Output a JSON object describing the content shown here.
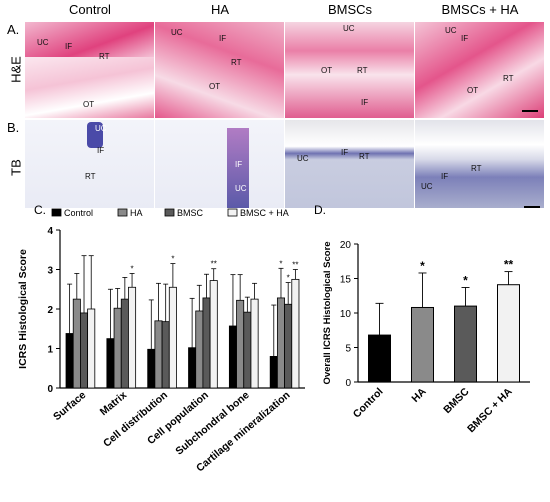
{
  "figure": {
    "column_headers": [
      "Control",
      "HA",
      "BMSCs",
      "BMSCs + HA"
    ],
    "row_labels": [
      "H&E",
      "TB"
    ],
    "panel_letters": {
      "a": "A.",
      "b": "B.",
      "c": "C.",
      "d": "D."
    },
    "he_tiles": [
      {
        "labels": [
          "UC",
          "IF",
          "RT",
          "OT"
        ]
      },
      {
        "labels": [
          "UC",
          "IF",
          "RT",
          "OT"
        ]
      },
      {
        "labels": [
          "UC",
          "OT",
          "RT",
          "IF"
        ]
      },
      {
        "labels": [
          "UC",
          "IF",
          "OT",
          "RT"
        ]
      }
    ],
    "tb_tiles": [
      {
        "labels": [
          "UC",
          "IF",
          "RT"
        ]
      },
      {
        "labels": [
          "IF",
          "UC"
        ]
      },
      {
        "labels": [
          "UC",
          "IF",
          "RT"
        ]
      },
      {
        "labels": [
          "RT",
          "IF",
          "UC"
        ]
      }
    ]
  },
  "chart_data": [
    {
      "type": "bar",
      "ylabel": "ICRS Histological Score",
      "ylim": [
        0,
        4
      ],
      "yticks": [
        0,
        1,
        2,
        3,
        4
      ],
      "legend_placement": "top",
      "categories": [
        "Surface",
        "Matrix",
        "Cell distribution",
        "Cell population",
        "Subchondral bone",
        "Cartilage mineralization"
      ],
      "series": [
        {
          "name": "Control",
          "color": "#000000",
          "values": [
            1.38,
            1.25,
            0.98,
            1.02,
            1.57,
            0.8
          ],
          "errors": [
            1.25,
            1.25,
            1.25,
            1.25,
            1.3,
            1.3
          ]
        },
        {
          "name": "HA",
          "color": "#8a8a8a",
          "values": [
            2.25,
            2.02,
            1.7,
            1.95,
            2.22,
            2.28
          ],
          "errors": [
            0.65,
            0.5,
            0.95,
            0.65,
            0.65,
            0.75
          ]
        },
        {
          "name": "BMSC",
          "color": "#5a5a5a",
          "values": [
            1.9,
            2.25,
            1.68,
            2.28,
            1.92,
            2.12
          ],
          "errors": [
            1.45,
            0.55,
            0.95,
            0.6,
            0.38,
            0.55
          ]
        },
        {
          "name": "BMSC + HA",
          "color": "#f2f2f2",
          "values": [
            2.0,
            2.55,
            2.55,
            2.72,
            2.25,
            2.75
          ],
          "errors": [
            1.35,
            0.35,
            0.6,
            0.3,
            0.4,
            0.25
          ]
        }
      ],
      "significance": [
        {
          "category": 1,
          "series": 3,
          "mark": "*"
        },
        {
          "category": 2,
          "series": 3,
          "mark": "*"
        },
        {
          "category": 3,
          "series": 3,
          "mark": "**"
        },
        {
          "category": 5,
          "series": 1,
          "mark": "*"
        },
        {
          "category": 5,
          "series": 2,
          "mark": "*"
        },
        {
          "category": 5,
          "series": 3,
          "mark": "**"
        }
      ]
    },
    {
      "type": "bar",
      "ylabel": "Overall ICRS Histological Score",
      "ylim": [
        0,
        20
      ],
      "yticks": [
        0,
        5,
        10,
        15,
        20
      ],
      "categories": [
        "Control",
        "HA",
        "BMSC",
        "BMSC + HA"
      ],
      "values": [
        6.8,
        10.8,
        11.0,
        14.1
      ],
      "errors": [
        4.6,
        5.0,
        2.7,
        1.9
      ],
      "colors": [
        "#000000",
        "#8a8a8a",
        "#5a5a5a",
        "#f2f2f2"
      ],
      "significance": [
        "",
        "*",
        "*",
        "**"
      ]
    }
  ]
}
